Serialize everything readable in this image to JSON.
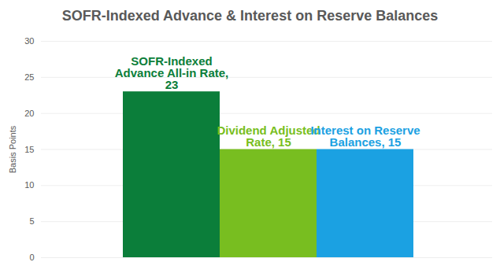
{
  "chart_data": {
    "type": "bar",
    "title": "SOFR-Indexed Advance & Interest on Reserve Balances",
    "y_label": "Basis Points",
    "categories": [
      "SOFR-Indexed Advance All-in Rate",
      "Dividend Adjusted Rate",
      "Interest on Reserve Balances"
    ],
    "values": [
      23,
      15,
      15
    ],
    "value_labels": [
      "SOFR-Indexed Advance All-in Rate, 23",
      "Dividend Adjusted Rate, 15",
      "Interest on Reserve Balances, 15"
    ],
    "colors": [
      "#0b7e3a",
      "#78be20",
      "#1ba1e2"
    ],
    "ylim": [
      0,
      30
    ],
    "yticks": [
      0,
      5,
      10,
      15,
      20,
      25,
      30
    ],
    "grid": true,
    "data_labels": true,
    "tick_labels": "y"
  }
}
